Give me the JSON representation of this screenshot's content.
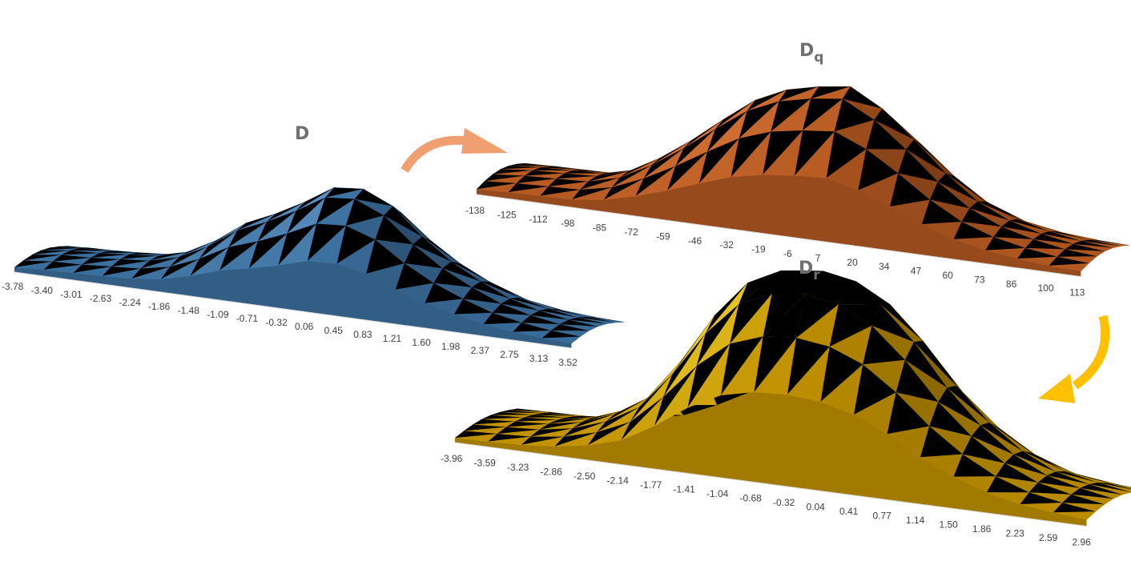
{
  "panels": [
    {
      "title": "D",
      "subscript": "",
      "ticks": [
        "-3.78",
        "-3.40",
        "-3.01",
        "-2.63",
        "-2.24",
        "-1.86",
        "-1.48",
        "-1.09",
        "-0.71",
        "-0.32",
        "0.06",
        "0.45",
        "0.83",
        "1.21",
        "1.60",
        "1.98",
        "2.37",
        "2.75",
        "3.13",
        "3.52"
      ],
      "colors": {
        "base": "#3a6e9c",
        "light": "#7ab3e8",
        "dark": "#233c56"
      }
    },
    {
      "title": "D",
      "subscript": "q",
      "ticks": [
        "-138",
        "-125",
        "-112",
        "-98",
        "-85",
        "-72",
        "-59",
        "-46",
        "-32",
        "-19",
        "-6",
        "7",
        "20",
        "34",
        "47",
        "60",
        "73",
        "86",
        "100",
        "113"
      ],
      "colors": {
        "base": "#b65a22",
        "light": "#f0894a",
        "dark": "#5e2d0f"
      }
    },
    {
      "title": "D",
      "subscript": "r",
      "ticks": [
        "-3.96",
        "-3.59",
        "-3.23",
        "-2.86",
        "-2.50",
        "-2.14",
        "-1.77",
        "-1.41",
        "-1.04",
        "-0.68",
        "-0.32",
        "0.04",
        "0.41",
        "0.77",
        "1.14",
        "1.50",
        "1.86",
        "2.23",
        "2.59",
        "2.96"
      ],
      "colors": {
        "base": "#c09000",
        "light": "#ffe23a",
        "dark": "#6e5200",
        "cap": "#f3c79a"
      }
    }
  ],
  "arrows": [
    {
      "name": "arrow-d-to-dq",
      "color": "#f0a070"
    },
    {
      "name": "arrow-dq-to-dr",
      "color": "#ffc000"
    }
  ],
  "chart_data": [
    {
      "type": "surface",
      "title": "D",
      "x": [
        "-3.78",
        "-3.40",
        "-3.01",
        "-2.63",
        "-2.24",
        "-1.86",
        "-1.48",
        "-1.09",
        "-0.71",
        "-0.32",
        "0.06",
        "0.45",
        "0.83",
        "1.21",
        "1.60",
        "1.98",
        "2.37",
        "2.75",
        "3.13",
        "3.52"
      ],
      "profile": [
        0.08,
        0.11,
        0.12,
        0.14,
        0.16,
        0.22,
        0.34,
        0.5,
        0.6,
        0.72,
        0.86,
        0.88,
        0.78,
        0.58,
        0.42,
        0.3,
        0.2,
        0.14,
        0.1,
        0.08
      ]
    },
    {
      "type": "surface",
      "title": "Dq",
      "x": [
        "-138",
        "-125",
        "-112",
        "-98",
        "-85",
        "-72",
        "-59",
        "-46",
        "-32",
        "-19",
        "-6",
        "7",
        "20",
        "34",
        "47",
        "60",
        "73",
        "86",
        "100",
        "113"
      ],
      "profile": [
        0.08,
        0.1,
        0.11,
        0.12,
        0.18,
        0.3,
        0.45,
        0.62,
        0.78,
        0.88,
        0.93,
        0.96,
        0.84,
        0.66,
        0.46,
        0.3,
        0.2,
        0.14,
        0.1,
        0.08
      ]
    },
    {
      "type": "surface",
      "title": "Dr",
      "x": [
        "-3.96",
        "-3.59",
        "-3.23",
        "-2.86",
        "-2.50",
        "-2.14",
        "-1.77",
        "-1.41",
        "-1.04",
        "-0.68",
        "-0.32",
        "0.04",
        "0.41",
        "0.77",
        "1.14",
        "1.50",
        "1.86",
        "2.23",
        "2.59",
        "2.96"
      ],
      "profile": [
        0.05,
        0.06,
        0.07,
        0.1,
        0.16,
        0.26,
        0.46,
        0.7,
        0.88,
        0.96,
        0.98,
        0.95,
        0.86,
        0.7,
        0.5,
        0.34,
        0.22,
        0.14,
        0.1,
        0.07
      ]
    }
  ]
}
